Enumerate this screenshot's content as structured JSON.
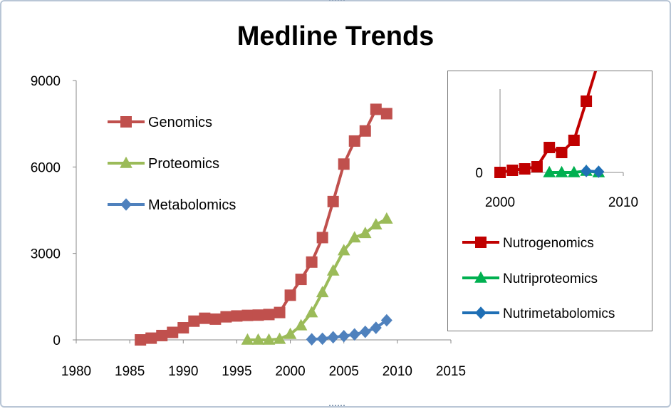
{
  "chart_data": [
    {
      "type": "line",
      "title": "Medline Trends",
      "xlabel": "",
      "ylabel": "",
      "xlim": [
        1980,
        2015
      ],
      "ylim": [
        0,
        9000
      ],
      "x_ticks": [
        "1980",
        "1985",
        "1990",
        "1995",
        "2000",
        "2005",
        "2010",
        "2015"
      ],
      "y_ticks": [
        "0",
        "3000",
        "6000",
        "9000"
      ],
      "grid": false,
      "legend_position": "top-left",
      "series": [
        {
          "name": "Genomics",
          "color": "#c0504d",
          "marker": "square",
          "x": [
            1986,
            1987,
            1988,
            1989,
            1990,
            1991,
            1992,
            1993,
            1994,
            1995,
            1996,
            1997,
            1998,
            1999,
            2000,
            2001,
            2002,
            2003,
            2004,
            2005,
            2006,
            2007,
            2008,
            2009
          ],
          "y": [
            0,
            60,
            150,
            260,
            420,
            650,
            750,
            720,
            800,
            830,
            850,
            860,
            880,
            950,
            1550,
            2100,
            2700,
            3550,
            4800,
            6100,
            6900,
            7250,
            8000,
            7850
          ]
        },
        {
          "name": "Proteomics",
          "color": "#9bbb59",
          "marker": "triangle",
          "x": [
            1996,
            1997,
            1998,
            1999,
            2000,
            2001,
            2002,
            2003,
            2004,
            2005,
            2006,
            2007,
            2008,
            2009
          ],
          "y": [
            0,
            0,
            0,
            30,
            200,
            500,
            950,
            1650,
            2400,
            3100,
            3550,
            3700,
            4000,
            4200
          ]
        },
        {
          "name": "Metabolomics",
          "color": "#4f81bd",
          "marker": "diamond",
          "x": [
            2002,
            2003,
            2004,
            2005,
            2006,
            2007,
            2008,
            2009
          ],
          "y": [
            20,
            40,
            90,
            130,
            190,
            280,
            420,
            680
          ]
        }
      ]
    },
    {
      "type": "line",
      "title": "",
      "xlim": [
        2000,
        2010
      ],
      "x_ticks": [
        "2000",
        "2010"
      ],
      "y_ticks": [
        "0"
      ],
      "grid": false,
      "legend_position": "bottom",
      "series": [
        {
          "name": "Nutrogenomics",
          "color": "#c00000",
          "marker": "square",
          "x": [
            2000,
            2001,
            2002,
            2003,
            2004,
            2005,
            2006,
            2007,
            2007.8
          ],
          "y": [
            0,
            3,
            5,
            8,
            35,
            28,
            45,
            100,
            145
          ]
        },
        {
          "name": "Nutriproteomics",
          "color": "#00b050",
          "marker": "triangle",
          "x": [
            2004,
            2005,
            2006,
            2007,
            2008
          ],
          "y": [
            0,
            0,
            0,
            2,
            0
          ]
        },
        {
          "name": "Nutrimetabolomics",
          "color": "#1f6fb5",
          "marker": "diamond",
          "x": [
            2007,
            2008
          ],
          "y": [
            2,
            1
          ]
        }
      ]
    }
  ]
}
